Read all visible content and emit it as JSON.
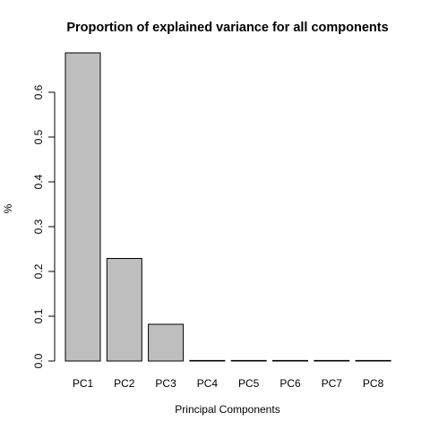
{
  "chart_data": {
    "type": "bar",
    "title": "Proportion of explained variance for all components",
    "xlabel": "Principal Components",
    "ylabel": "%",
    "categories": [
      "PC1",
      "PC2",
      "PC3",
      "PC4",
      "PC5",
      "PC6",
      "PC7",
      "PC8"
    ],
    "values": [
      0.688,
      0.229,
      0.082,
      0.001,
      0.0005,
      0.0003,
      0.0002,
      0.0001
    ],
    "ylim": [
      0,
      0.7
    ],
    "yticks": [
      0.0,
      0.1,
      0.2,
      0.3,
      0.4,
      0.5,
      0.6
    ],
    "ytick_labels": [
      "0.0",
      "0.1",
      "0.2",
      "0.3",
      "0.4",
      "0.5",
      "0.6"
    ],
    "grid": false,
    "bar_color": "#bebebe",
    "bar_edge_color": "#000000"
  }
}
